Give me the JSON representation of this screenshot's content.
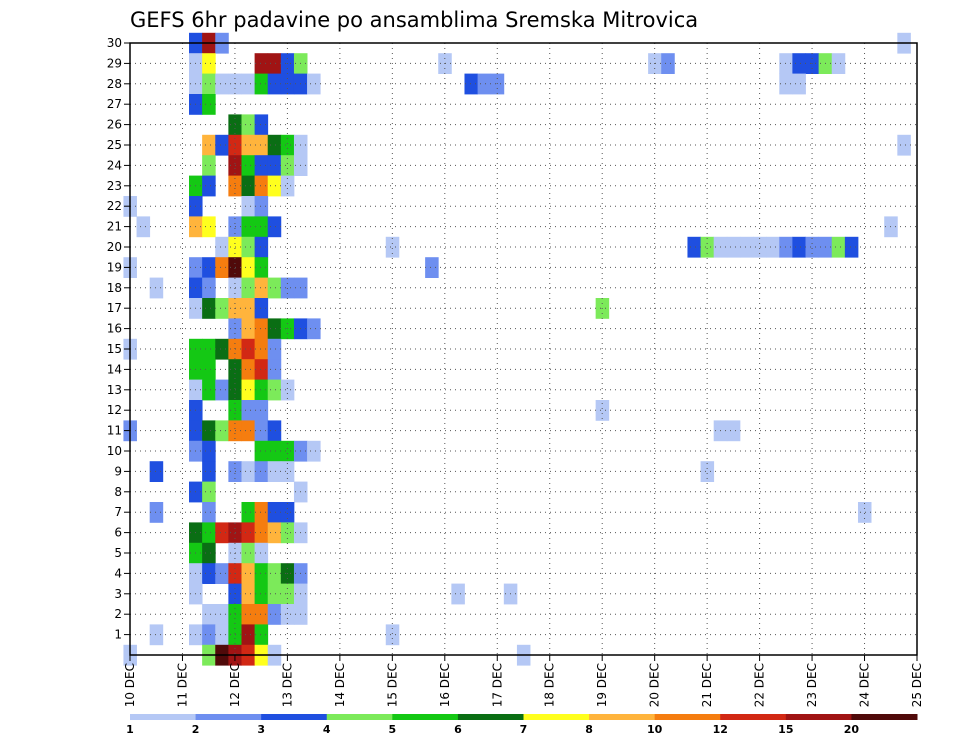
{
  "chart_data": {
    "type": "heatmap",
    "title": "GEFS 6hr padavine po ansamblima Sremska Mitrovica",
    "x_tick_labels": [
      "10 DEC",
      "11 DEC",
      "12 DEC",
      "13 DEC",
      "14 DEC",
      "15 DEC",
      "16 DEC",
      "17 DEC",
      "18 DEC",
      "19 DEC",
      "20 DEC",
      "21 DEC",
      "22 DEC",
      "23 DEC",
      "24 DEC",
      "25 DEC"
    ],
    "y_tick_labels": [
      "1",
      "2",
      "3",
      "4",
      "5",
      "6",
      "7",
      "8",
      "9",
      "10",
      "11",
      "12",
      "13",
      "14",
      "15",
      "16",
      "17",
      "18",
      "19",
      "20",
      "21",
      "22",
      "23",
      "24",
      "25",
      "26",
      "27",
      "28",
      "29",
      "30"
    ],
    "xlim_days": [
      10,
      25
    ],
    "ylim_members": [
      0,
      30
    ],
    "grid": "dotted",
    "color_levels": [
      1,
      2,
      3,
      4,
      5,
      6,
      7,
      8,
      10,
      12,
      15,
      20
    ],
    "color_scale": [
      "#b5c8f5",
      "#6e8ff0",
      "#1f4fe0",
      "#7cea5a",
      "#14c814",
      "#0a6e14",
      "#ffff1e",
      "#ffb43c",
      "#f57d0f",
      "#d22814",
      "#a01414",
      "#500a0a"
    ],
    "legend_position": "bottom",
    "cells_note": "each cell: [day, member, color class 1-12]",
    "cells": [
      [
        11.25,
        30,
        3
      ],
      [
        11.5,
        30,
        11
      ],
      [
        11.75,
        30,
        2
      ],
      [
        24.75,
        30,
        1
      ],
      [
        11.25,
        29,
        1
      ],
      [
        11.5,
        29,
        7
      ],
      [
        12.5,
        29,
        11
      ],
      [
        12.75,
        29,
        11
      ],
      [
        13.0,
        29,
        3
      ],
      [
        13.25,
        29,
        4
      ],
      [
        16.0,
        29,
        1
      ],
      [
        20.0,
        29,
        1
      ],
      [
        20.25,
        29,
        2
      ],
      [
        22.5,
        29,
        1
      ],
      [
        22.75,
        29,
        3
      ],
      [
        23.0,
        29,
        3
      ],
      [
        23.25,
        29,
        4
      ],
      [
        23.5,
        29,
        1
      ],
      [
        11.25,
        28,
        1
      ],
      [
        11.5,
        28,
        4
      ],
      [
        11.75,
        28,
        1
      ],
      [
        12.0,
        28,
        1
      ],
      [
        12.25,
        28,
        1
      ],
      [
        12.5,
        28,
        5
      ],
      [
        12.75,
        28,
        3
      ],
      [
        13.0,
        28,
        3
      ],
      [
        13.25,
        28,
        3
      ],
      [
        13.5,
        28,
        1
      ],
      [
        16.5,
        28,
        3
      ],
      [
        16.75,
        28,
        2
      ],
      [
        17.0,
        28,
        2
      ],
      [
        22.5,
        28,
        1
      ],
      [
        22.75,
        28,
        1
      ],
      [
        11.25,
        27,
        3
      ],
      [
        11.5,
        27,
        5
      ],
      [
        12.0,
        26,
        6
      ],
      [
        12.25,
        26,
        4
      ],
      [
        12.5,
        26,
        3
      ],
      [
        11.5,
        25,
        8
      ],
      [
        11.75,
        25,
        3
      ],
      [
        12.0,
        25,
        10
      ],
      [
        12.25,
        25,
        8
      ],
      [
        12.5,
        25,
        8
      ],
      [
        12.75,
        25,
        6
      ],
      [
        13.0,
        25,
        5
      ],
      [
        13.25,
        25,
        1
      ],
      [
        24.75,
        25,
        1
      ],
      [
        11.5,
        24,
        4
      ],
      [
        12.0,
        24,
        11
      ],
      [
        12.25,
        24,
        5
      ],
      [
        12.5,
        24,
        3
      ],
      [
        12.75,
        24,
        3
      ],
      [
        13.0,
        24,
        4
      ],
      [
        13.25,
        24,
        1
      ],
      [
        11.25,
        23,
        5
      ],
      [
        11.5,
        23,
        3
      ],
      [
        12.0,
        23,
        9
      ],
      [
        12.25,
        23,
        6
      ],
      [
        12.5,
        23,
        9
      ],
      [
        12.75,
        23,
        7
      ],
      [
        13.0,
        23,
        1
      ],
      [
        11.25,
        22,
        3
      ],
      [
        12.25,
        22,
        1
      ],
      [
        12.5,
        22,
        2
      ],
      [
        10.0,
        22,
        1
      ],
      [
        10.25,
        21,
        1
      ],
      [
        11.25,
        21,
        8
      ],
      [
        11.5,
        21,
        7
      ],
      [
        12.0,
        21,
        2
      ],
      [
        12.25,
        21,
        5
      ],
      [
        12.5,
        21,
        5
      ],
      [
        12.75,
        21,
        3
      ],
      [
        24.5,
        21,
        1
      ],
      [
        11.75,
        20,
        1
      ],
      [
        12.0,
        20,
        7
      ],
      [
        12.25,
        20,
        4
      ],
      [
        12.5,
        20,
        3
      ],
      [
        15.0,
        20,
        1
      ],
      [
        20.75,
        20,
        3
      ],
      [
        21.0,
        20,
        4
      ],
      [
        21.25,
        20,
        1
      ],
      [
        21.5,
        20,
        1
      ],
      [
        21.75,
        20,
        1
      ],
      [
        22.0,
        20,
        1
      ],
      [
        22.25,
        20,
        1
      ],
      [
        22.5,
        20,
        2
      ],
      [
        22.75,
        20,
        3
      ],
      [
        23.0,
        20,
        2
      ],
      [
        23.25,
        20,
        2
      ],
      [
        23.5,
        20,
        4
      ],
      [
        23.75,
        20,
        3
      ],
      [
        10.0,
        19,
        1
      ],
      [
        11.25,
        19,
        2
      ],
      [
        11.5,
        19,
        3
      ],
      [
        11.75,
        19,
        9
      ],
      [
        12.0,
        19,
        12
      ],
      [
        12.25,
        19,
        7
      ],
      [
        12.5,
        19,
        5
      ],
      [
        15.75,
        19,
        2
      ],
      [
        10.5,
        18,
        1
      ],
      [
        11.25,
        18,
        3
      ],
      [
        11.5,
        18,
        2
      ],
      [
        12.0,
        18,
        1
      ],
      [
        12.25,
        18,
        4
      ],
      [
        12.5,
        18,
        8
      ],
      [
        12.75,
        18,
        4
      ],
      [
        13.0,
        18,
        2
      ],
      [
        13.25,
        18,
        2
      ],
      [
        11.25,
        17,
        1
      ],
      [
        11.5,
        17,
        6
      ],
      [
        11.75,
        17,
        4
      ],
      [
        12.0,
        17,
        8
      ],
      [
        12.25,
        17,
        8
      ],
      [
        12.5,
        17,
        3
      ],
      [
        19.0,
        17,
        4
      ],
      [
        12.0,
        16,
        2
      ],
      [
        12.25,
        16,
        8
      ],
      [
        12.5,
        16,
        9
      ],
      [
        12.75,
        16,
        6
      ],
      [
        13.0,
        16,
        5
      ],
      [
        13.25,
        16,
        3
      ],
      [
        13.5,
        16,
        2
      ],
      [
        10.0,
        15,
        1
      ],
      [
        11.25,
        15,
        5
      ],
      [
        11.5,
        15,
        5
      ],
      [
        11.75,
        15,
        6
      ],
      [
        12.0,
        15,
        9
      ],
      [
        12.25,
        15,
        10
      ],
      [
        12.5,
        15,
        9
      ],
      [
        12.75,
        15,
        2
      ],
      [
        11.25,
        14,
        5
      ],
      [
        11.5,
        14,
        5
      ],
      [
        12.0,
        14,
        6
      ],
      [
        12.25,
        14,
        9
      ],
      [
        12.5,
        14,
        10
      ],
      [
        12.75,
        14,
        2
      ],
      [
        11.25,
        13,
        1
      ],
      [
        11.5,
        13,
        5
      ],
      [
        11.75,
        13,
        2
      ],
      [
        12.0,
        13,
        6
      ],
      [
        12.25,
        13,
        7
      ],
      [
        12.5,
        13,
        5
      ],
      [
        12.75,
        13,
        4
      ],
      [
        13.0,
        13,
        1
      ],
      [
        11.25,
        12,
        3
      ],
      [
        12.0,
        12,
        5
      ],
      [
        12.25,
        12,
        2
      ],
      [
        12.5,
        12,
        2
      ],
      [
        19.0,
        12,
        1
      ],
      [
        10.0,
        11,
        2
      ],
      [
        11.25,
        11,
        3
      ],
      [
        11.5,
        11,
        6
      ],
      [
        11.75,
        11,
        4
      ],
      [
        12.0,
        11,
        9
      ],
      [
        12.25,
        11,
        9
      ],
      [
        12.5,
        11,
        2
      ],
      [
        12.75,
        11,
        3
      ],
      [
        21.25,
        11,
        1
      ],
      [
        21.5,
        11,
        1
      ],
      [
        11.25,
        10,
        2
      ],
      [
        11.5,
        10,
        3
      ],
      [
        12.5,
        10,
        5
      ],
      [
        12.75,
        10,
        5
      ],
      [
        13.0,
        10,
        5
      ],
      [
        13.25,
        10,
        2
      ],
      [
        13.5,
        10,
        1
      ],
      [
        10.5,
        9,
        3
      ],
      [
        11.5,
        9,
        3
      ],
      [
        12.0,
        9,
        2
      ],
      [
        12.25,
        9,
        1
      ],
      [
        12.5,
        9,
        2
      ],
      [
        12.75,
        9,
        1
      ],
      [
        13.0,
        9,
        1
      ],
      [
        21.0,
        9,
        1
      ],
      [
        11.25,
        8,
        3
      ],
      [
        11.5,
        8,
        4
      ],
      [
        13.25,
        8,
        1
      ],
      [
        10.5,
        7,
        2
      ],
      [
        11.5,
        7,
        2
      ],
      [
        12.25,
        7,
        5
      ],
      [
        12.5,
        7,
        9
      ],
      [
        12.75,
        7,
        3
      ],
      [
        13.0,
        7,
        3
      ],
      [
        24.0,
        7,
        1
      ],
      [
        11.25,
        6,
        6
      ],
      [
        11.5,
        6,
        5
      ],
      [
        11.75,
        6,
        10
      ],
      [
        12.0,
        6,
        11
      ],
      [
        12.25,
        6,
        10
      ],
      [
        12.5,
        6,
        9
      ],
      [
        12.75,
        6,
        8
      ],
      [
        13.0,
        6,
        4
      ],
      [
        13.25,
        6,
        1
      ],
      [
        11.25,
        5,
        5
      ],
      [
        11.5,
        5,
        6
      ],
      [
        12.0,
        5,
        1
      ],
      [
        12.25,
        5,
        4
      ],
      [
        12.5,
        5,
        1
      ],
      [
        11.25,
        4,
        1
      ],
      [
        11.5,
        4,
        3
      ],
      [
        11.75,
        4,
        2
      ],
      [
        12.0,
        4,
        10
      ],
      [
        12.25,
        4,
        8
      ],
      [
        12.5,
        4,
        5
      ],
      [
        12.75,
        4,
        4
      ],
      [
        13.0,
        4,
        6
      ],
      [
        13.25,
        4,
        2
      ],
      [
        11.25,
        3,
        1
      ],
      [
        12.0,
        3,
        3
      ],
      [
        12.25,
        3,
        8
      ],
      [
        12.5,
        3,
        5
      ],
      [
        12.75,
        3,
        4
      ],
      [
        13.0,
        3,
        4
      ],
      [
        13.25,
        3,
        1
      ],
      [
        16.25,
        3,
        1
      ],
      [
        17.25,
        3,
        1
      ],
      [
        11.5,
        2,
        1
      ],
      [
        11.75,
        2,
        1
      ],
      [
        12.0,
        2,
        5
      ],
      [
        12.25,
        2,
        9
      ],
      [
        12.5,
        2,
        9
      ],
      [
        12.75,
        2,
        2
      ],
      [
        13.0,
        2,
        1
      ],
      [
        13.25,
        2,
        1
      ],
      [
        10.5,
        1,
        1
      ],
      [
        11.25,
        1,
        1
      ],
      [
        11.5,
        1,
        2
      ],
      [
        11.75,
        1,
        1
      ],
      [
        12.0,
        1,
        5
      ],
      [
        12.25,
        1,
        11
      ],
      [
        12.5,
        1,
        5
      ],
      [
        15.0,
        1,
        1
      ],
      [
        10.0,
        0,
        1
      ],
      [
        11.5,
        0,
        4
      ],
      [
        11.75,
        0,
        12
      ],
      [
        12.0,
        0,
        11
      ],
      [
        12.25,
        0,
        10
      ],
      [
        12.5,
        0,
        7
      ],
      [
        12.75,
        0,
        1
      ],
      [
        17.5,
        0,
        1
      ]
    ]
  }
}
